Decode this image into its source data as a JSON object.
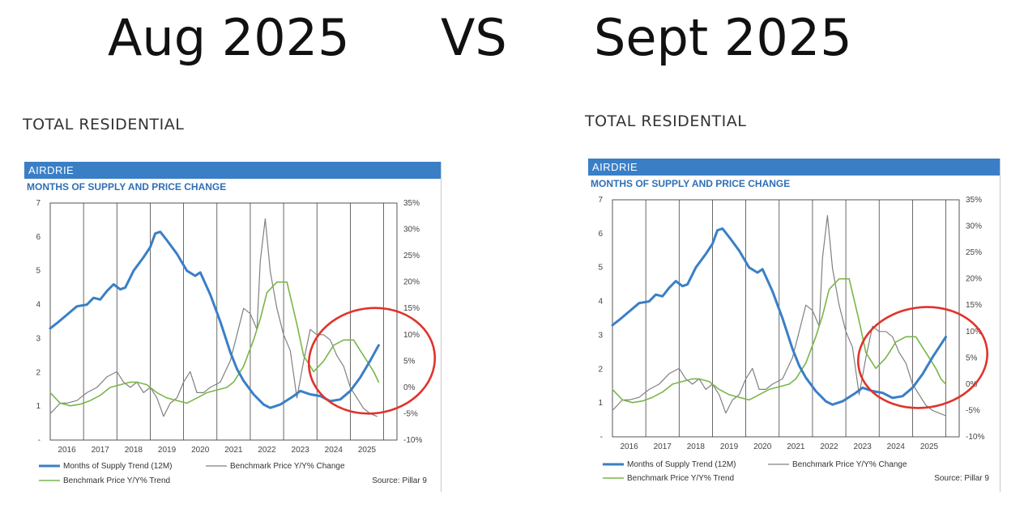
{
  "headline": {
    "left": "Aug 2025",
    "vs": "VS",
    "right": "Sept 2025"
  },
  "colors": {
    "supply": "#3a7fc6",
    "benchmark_change": "#808080",
    "benchmark_trend": "#7ab648",
    "header_bg": "#3a7fc6",
    "circle": "#e0332b"
  },
  "panels": [
    {
      "section_title": "TOTAL RESIDENTIAL",
      "header": "AIRDRIE",
      "subtitle": "MONTHS OF SUPPLY AND PRICE CHANGE",
      "source": "Source: Pillar 9"
    },
    {
      "section_title": "TOTAL RESIDENTIAL",
      "header": "AIRDRIE",
      "subtitle": "MONTHS OF SUPPLY AND PRICE CHANGE",
      "source": "Source: Pillar 9"
    }
  ],
  "chart_data": [
    {
      "type": "line",
      "title": "MONTHS OF SUPPLY AND PRICE CHANGE",
      "x_range": [
        2015.5,
        2025.9
      ],
      "x_tick_labels": [
        "2016",
        "2017",
        "2018",
        "2019",
        "2020",
        "2021",
        "2022",
        "2023",
        "2024",
        "2025"
      ],
      "left_axis": {
        "range": [
          0,
          7
        ],
        "tick_labels": [
          "-",
          "1",
          "2",
          "3",
          "4",
          "5",
          "6",
          "7"
        ]
      },
      "right_axis": {
        "range": [
          -10,
          35
        ],
        "tick_labels": [
          "-10%",
          "-5%",
          "0%",
          "5%",
          "10%",
          "15%",
          "20%",
          "25%",
          "30%",
          "35%"
        ]
      },
      "legend": [
        "Months of Supply Trend (12M)",
        "Benchmark Price Y/Y% Change",
        "Benchmark Price Y/Y% Trend"
      ],
      "series": [
        {
          "name": "Months of Supply Trend (12M)",
          "axis": "left",
          "x": [
            2015.5,
            2015.7,
            2016.0,
            2016.3,
            2016.6,
            2016.8,
            2017.0,
            2017.2,
            2017.4,
            2017.6,
            2017.75,
            2018.0,
            2018.3,
            2018.5,
            2018.65,
            2018.8,
            2019.0,
            2019.3,
            2019.6,
            2019.85,
            2020.0,
            2020.3,
            2020.6,
            2020.9,
            2021.1,
            2021.3,
            2021.6,
            2021.9,
            2022.1,
            2022.4,
            2022.8,
            2023.0,
            2023.3,
            2023.6,
            2023.9,
            2024.2,
            2024.5,
            2024.8,
            2025.1,
            2025.35
          ],
          "y": [
            3.3,
            3.45,
            3.7,
            3.95,
            4.0,
            4.2,
            4.15,
            4.4,
            4.6,
            4.45,
            4.5,
            5.0,
            5.4,
            5.7,
            6.1,
            6.15,
            5.9,
            5.5,
            5.0,
            4.85,
            4.95,
            4.3,
            3.5,
            2.6,
            2.1,
            1.75,
            1.35,
            1.05,
            0.95,
            1.05,
            1.3,
            1.45,
            1.35,
            1.3,
            1.15,
            1.2,
            1.45,
            1.85,
            2.35,
            2.8
          ]
        },
        {
          "name": "Benchmark Price Y/Y% Change",
          "axis": "right",
          "x": [
            2015.5,
            2015.8,
            2016.0,
            2016.3,
            2016.6,
            2016.9,
            2017.2,
            2017.5,
            2017.7,
            2017.9,
            2018.1,
            2018.3,
            2018.5,
            2018.7,
            2018.9,
            2019.1,
            2019.3,
            2019.5,
            2019.7,
            2019.9,
            2020.1,
            2020.3,
            2020.6,
            2020.9,
            2021.1,
            2021.3,
            2021.5,
            2021.7,
            2021.8,
            2021.95,
            2022.1,
            2022.3,
            2022.5,
            2022.7,
            2022.9,
            2023.1,
            2023.3,
            2023.5,
            2023.7,
            2023.9,
            2024.1,
            2024.3,
            2024.5,
            2024.7,
            2024.9,
            2025.1,
            2025.3
          ],
          "y": [
            -5,
            -3,
            -3,
            -2.5,
            -1,
            0,
            2,
            3,
            1,
            0,
            1,
            -1,
            0,
            -2,
            -5.5,
            -3,
            -2,
            1,
            3,
            -1,
            -1,
            0,
            1,
            5,
            10,
            15,
            14,
            11,
            24,
            32,
            22,
            15,
            10,
            7,
            -2,
            5,
            11,
            10,
            10,
            9,
            6,
            4,
            0,
            -2,
            -4,
            -5,
            -5.5
          ]
        },
        {
          "name": "Benchmark Price Y/Y% Trend",
          "axis": "right",
          "x": [
            2015.5,
            2015.8,
            2016.1,
            2016.4,
            2016.7,
            2017.0,
            2017.3,
            2017.6,
            2017.9,
            2018.1,
            2018.4,
            2018.7,
            2019.0,
            2019.3,
            2019.6,
            2019.9,
            2020.2,
            2020.5,
            2020.8,
            2021.0,
            2021.3,
            2021.6,
            2021.8,
            2022.0,
            2022.3,
            2022.6,
            2022.9,
            2023.1,
            2023.4,
            2023.7,
            2024.0,
            2024.3,
            2024.6,
            2024.8,
            2025.0,
            2025.2,
            2025.35
          ],
          "y": [
            -1,
            -3,
            -3.5,
            -3.2,
            -2.5,
            -1.5,
            0,
            0.5,
            1,
            1,
            0.5,
            -1,
            -2,
            -2.5,
            -3,
            -2,
            -1,
            -0.5,
            0,
            1,
            4,
            9,
            13,
            18,
            20,
            20,
            12,
            6,
            3,
            5,
            8,
            9,
            9,
            7,
            5,
            3,
            1
          ]
        }
      ]
    },
    {
      "type": "line",
      "title": "MONTHS OF SUPPLY AND PRICE CHANGE",
      "x_range": [
        2015.5,
        2025.9
      ],
      "x_tick_labels": [
        "2016",
        "2017",
        "2018",
        "2019",
        "2020",
        "2021",
        "2022",
        "2023",
        "2024",
        "2025"
      ],
      "left_axis": {
        "range": [
          0,
          7
        ],
        "tick_labels": [
          "-",
          "1",
          "2",
          "3",
          "4",
          "5",
          "6",
          "7"
        ]
      },
      "right_axis": {
        "range": [
          -10,
          35
        ],
        "tick_labels": [
          "-10%",
          "-5%",
          "0%",
          "5%",
          "10%",
          "15%",
          "20%",
          "25%",
          "30%",
          "35%"
        ]
      },
      "legend": [
        "Months of Supply Trend (12M)",
        "Benchmark Price Y/Y% Change",
        "Benchmark Price Y/Y% Trend"
      ],
      "series": [
        {
          "name": "Months of Supply Trend (12M)",
          "axis": "left",
          "x": [
            2015.5,
            2015.7,
            2016.0,
            2016.3,
            2016.6,
            2016.8,
            2017.0,
            2017.2,
            2017.4,
            2017.6,
            2017.75,
            2018.0,
            2018.3,
            2018.5,
            2018.65,
            2018.8,
            2019.0,
            2019.3,
            2019.6,
            2019.85,
            2020.0,
            2020.3,
            2020.6,
            2020.9,
            2021.1,
            2021.3,
            2021.6,
            2021.9,
            2022.1,
            2022.4,
            2022.8,
            2023.0,
            2023.3,
            2023.6,
            2023.9,
            2024.2,
            2024.5,
            2024.8,
            2025.1,
            2025.3,
            2025.5
          ],
          "y": [
            3.3,
            3.45,
            3.7,
            3.95,
            4.0,
            4.2,
            4.15,
            4.4,
            4.6,
            4.45,
            4.5,
            5.0,
            5.4,
            5.7,
            6.1,
            6.15,
            5.9,
            5.5,
            5.0,
            4.85,
            4.95,
            4.3,
            3.5,
            2.6,
            2.1,
            1.75,
            1.35,
            1.05,
            0.95,
            1.05,
            1.3,
            1.45,
            1.35,
            1.3,
            1.15,
            1.2,
            1.45,
            1.85,
            2.35,
            2.65,
            2.95
          ]
        },
        {
          "name": "Benchmark Price Y/Y% Change",
          "axis": "right",
          "x": [
            2015.5,
            2015.8,
            2016.0,
            2016.3,
            2016.6,
            2016.9,
            2017.2,
            2017.5,
            2017.7,
            2017.9,
            2018.1,
            2018.3,
            2018.5,
            2018.7,
            2018.9,
            2019.1,
            2019.3,
            2019.5,
            2019.7,
            2019.9,
            2020.1,
            2020.3,
            2020.6,
            2020.9,
            2021.1,
            2021.3,
            2021.5,
            2021.7,
            2021.8,
            2021.95,
            2022.1,
            2022.3,
            2022.5,
            2022.7,
            2022.9,
            2023.1,
            2023.3,
            2023.5,
            2023.7,
            2023.9,
            2024.1,
            2024.3,
            2024.5,
            2024.7,
            2024.9,
            2025.1,
            2025.3,
            2025.5
          ],
          "y": [
            -5,
            -3,
            -3,
            -2.5,
            -1,
            0,
            2,
            3,
            1,
            0,
            1,
            -1,
            0,
            -2,
            -5.5,
            -3,
            -2,
            1,
            3,
            -1,
            -1,
            0,
            1,
            5,
            10,
            15,
            14,
            11,
            24,
            32,
            22,
            15,
            10,
            7,
            -2,
            5,
            11,
            10,
            10,
            9,
            6,
            4,
            0,
            -2,
            -4,
            -5,
            -5.5,
            -6
          ]
        },
        {
          "name": "Benchmark Price Y/Y% Trend",
          "axis": "right",
          "x": [
            2015.5,
            2015.8,
            2016.1,
            2016.4,
            2016.7,
            2017.0,
            2017.3,
            2017.6,
            2017.9,
            2018.1,
            2018.4,
            2018.7,
            2019.0,
            2019.3,
            2019.6,
            2019.9,
            2020.2,
            2020.5,
            2020.8,
            2021.0,
            2021.3,
            2021.6,
            2021.8,
            2022.0,
            2022.3,
            2022.6,
            2022.9,
            2023.1,
            2023.4,
            2023.7,
            2024.0,
            2024.3,
            2024.6,
            2024.8,
            2025.0,
            2025.2,
            2025.35,
            2025.5
          ],
          "y": [
            -1,
            -3,
            -3.5,
            -3.2,
            -2.5,
            -1.5,
            0,
            0.5,
            1,
            1,
            0.5,
            -1,
            -2,
            -2.5,
            -3,
            -2,
            -1,
            -0.5,
            0,
            1,
            4,
            9,
            13,
            18,
            20,
            20,
            12,
            6,
            3,
            5,
            8,
            9,
            9,
            7,
            5,
            3,
            1,
            0
          ]
        }
      ]
    }
  ]
}
